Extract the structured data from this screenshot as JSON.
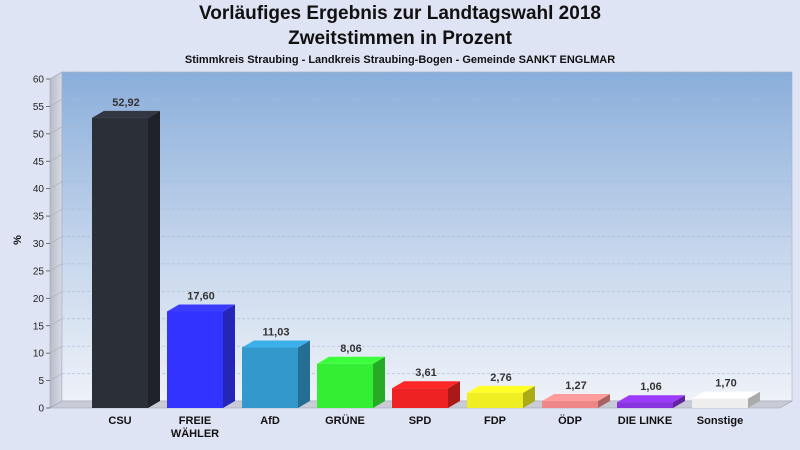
{
  "chart_data": {
    "type": "bar",
    "title": "Vorläufiges Ergebnis zur Landtagswahl 2018",
    "subtitle": "Zweitstimmen in Prozent",
    "caption": "Stimmkreis Straubing - Landkreis Straubing-Bogen - Gemeinde SANKT ENGLMAR",
    "ylabel": "%",
    "ylim": [
      0,
      60
    ],
    "yticks": [
      0,
      5,
      10,
      15,
      20,
      25,
      30,
      35,
      40,
      45,
      50,
      55,
      60
    ],
    "grid": true,
    "categories": [
      [
        "CSU"
      ],
      [
        "FREIE",
        "WÄHLER"
      ],
      [
        "AfD"
      ],
      [
        "GRÜNE"
      ],
      [
        "SPD"
      ],
      [
        "FDP"
      ],
      [
        "ÖDP"
      ],
      [
        "DIE LINKE"
      ],
      [
        "Sonstige"
      ]
    ],
    "values": [
      52.92,
      17.6,
      11.03,
      8.06,
      3.61,
      2.76,
      1.27,
      1.06,
      1.7
    ],
    "value_labels": [
      "52,92",
      "17,60",
      "11,03",
      "8,06",
      "3,61",
      "2,76",
      "1,27",
      "1,06",
      "1,70"
    ],
    "colors": [
      "#2b2f38",
      "#3333ff",
      "#3399cc",
      "#33ee33",
      "#ee2222",
      "#eeee22",
      "#ee8888",
      "#8833dd",
      "#eeeeee"
    ]
  }
}
